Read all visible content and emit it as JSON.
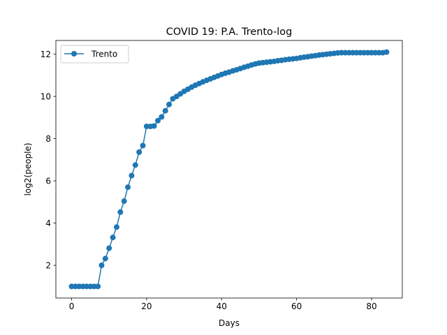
{
  "chart_data": {
    "type": "line",
    "title": "COVID 19: P.A. Trento-log",
    "xlabel": "Days",
    "ylabel": "log2(people)",
    "xlim": [
      -4.2,
      88.2
    ],
    "ylim": [
      0.45,
      12.65
    ],
    "xticks": [
      0,
      20,
      40,
      60,
      80
    ],
    "yticks": [
      2,
      4,
      6,
      8,
      10,
      12
    ],
    "grid": false,
    "legend": {
      "position": "top-left",
      "entries": [
        "Trento"
      ]
    },
    "series": [
      {
        "name": "Trento",
        "color": "#1f77b4",
        "marker": "circle",
        "x": [
          0,
          1,
          2,
          3,
          4,
          5,
          6,
          7,
          8,
          9,
          10,
          11,
          12,
          13,
          14,
          15,
          16,
          17,
          18,
          19,
          20,
          21,
          22,
          23,
          24,
          25,
          26,
          27,
          28,
          29,
          30,
          31,
          32,
          33,
          34,
          35,
          36,
          37,
          38,
          39,
          40,
          41,
          42,
          43,
          44,
          45,
          46,
          47,
          48,
          49,
          50,
          51,
          52,
          53,
          54,
          55,
          56,
          57,
          58,
          59,
          60,
          61,
          62,
          63,
          64,
          65,
          66,
          67,
          68,
          69,
          70,
          71,
          72,
          73,
          74,
          75,
          76,
          77,
          78,
          79,
          80,
          81,
          82,
          83,
          84
        ],
        "y": [
          1.0,
          1.0,
          1.0,
          1.0,
          1.0,
          1.0,
          1.0,
          1.0,
          2.0,
          2.32,
          2.81,
          3.32,
          3.81,
          4.52,
          5.04,
          5.7,
          6.25,
          6.75,
          7.36,
          7.67,
          8.58,
          8.58,
          8.6,
          8.85,
          9.03,
          9.32,
          9.62,
          9.89,
          10.0,
          10.12,
          10.24,
          10.34,
          10.44,
          10.53,
          10.61,
          10.69,
          10.76,
          10.83,
          10.9,
          10.97,
          11.04,
          11.1,
          11.15,
          11.21,
          11.26,
          11.32,
          11.38,
          11.43,
          11.49,
          11.54,
          11.58,
          11.6,
          11.62,
          11.64,
          11.66,
          11.69,
          11.71,
          11.74,
          11.76,
          11.78,
          11.8,
          11.83,
          11.86,
          11.88,
          11.91,
          11.93,
          11.96,
          11.98,
          12.0,
          12.02,
          12.04,
          12.06,
          12.07,
          12.07,
          12.07,
          12.07,
          12.07,
          12.07,
          12.07,
          12.07,
          12.07,
          12.07,
          12.07,
          12.07,
          12.1
        ]
      }
    ]
  }
}
